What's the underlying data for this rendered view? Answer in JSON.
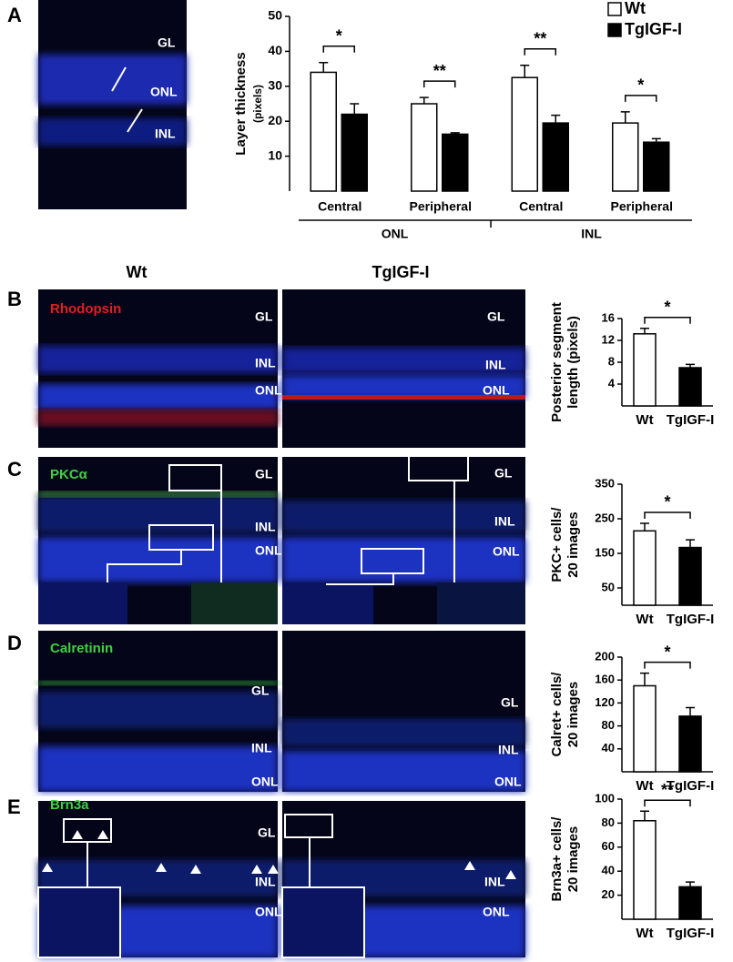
{
  "figure": {
    "panel_labels": [
      "A",
      "B",
      "C",
      "D",
      "E"
    ],
    "column_headers": [
      "Wt",
      "TgIGF-I"
    ],
    "stains": [
      "Rhodopsin",
      "PKCα",
      "Calretinin",
      "Brn3a"
    ],
    "image_labels": [
      [
        "GL",
        "ONL",
        "INL"
      ],
      [
        "GL",
        "INL",
        "ONL"
      ],
      [
        "GL",
        "INL",
        "ONL"
      ],
      [
        "GL",
        "INL",
        "ONL"
      ],
      [
        "GL",
        "INL",
        "ONL"
      ],
      [
        "GL",
        "INL",
        "ONL"
      ],
      [
        "GL",
        "INL",
        "ONL"
      ],
      [
        "GL",
        "INL",
        "ONL"
      ],
      [
        "INL",
        "ONL"
      ]
    ]
  },
  "chart_data": [
    {
      "type": "bar",
      "ylabel": [
        "Layer thickness",
        "(pixels)"
      ],
      "categories": [
        "Central",
        "Peripheral",
        "Central",
        "Peripheral"
      ],
      "groups": [
        "ONL",
        "INL"
      ],
      "series": [
        {
          "name": "Wt",
          "color": "#ffffff",
          "values": [
            34,
            25,
            32.5,
            19.5
          ],
          "errors": [
            2.8,
            1.8,
            3.5,
            3.2
          ]
        },
        {
          "name": "TgIGF-I",
          "color": "#000000",
          "values": [
            22,
            16.3,
            19.5,
            14
          ],
          "errors": [
            3,
            0.4,
            2.2,
            1
          ]
        }
      ],
      "significance": [
        "*",
        "**",
        "**",
        "*"
      ],
      "ylim": [
        0,
        50
      ],
      "yticks": [
        10,
        20,
        30,
        40,
        50
      ]
    },
    {
      "type": "bar",
      "ylabel": [
        "Posterior segment",
        "length (pixels)"
      ],
      "categories": [
        "Wt",
        "TgIGF-I"
      ],
      "values": [
        13.2,
        7
      ],
      "errors": [
        1,
        0.6
      ],
      "colors": [
        "#ffffff",
        "#000000"
      ],
      "significance": [
        "*"
      ],
      "ylim": [
        0,
        16
      ],
      "yticks": [
        4,
        8,
        12,
        16
      ]
    },
    {
      "type": "bar",
      "ylabel": [
        "PKC+ cells/",
        "20 images"
      ],
      "categories": [
        "Wt",
        "TgIGF-I"
      ],
      "values": [
        215,
        167
      ],
      "errors": [
        22,
        22
      ],
      "colors": [
        "#ffffff",
        "#000000"
      ],
      "significance": [
        "*"
      ],
      "ylim": [
        0,
        350
      ],
      "yticks": [
        50,
        150,
        250,
        350
      ]
    },
    {
      "type": "bar",
      "ylabel": [
        "Calret+ cells/",
        "20 images"
      ],
      "categories": [
        "Wt",
        "TgIGF-I"
      ],
      "values": [
        150,
        97
      ],
      "errors": [
        22,
        15
      ],
      "colors": [
        "#ffffff",
        "#000000"
      ],
      "significance": [
        "*"
      ],
      "ylim": [
        0,
        200
      ],
      "yticks": [
        40,
        80,
        120,
        160,
        200
      ]
    },
    {
      "type": "bar",
      "ylabel": [
        "Brn3a+ cells/",
        "20 images"
      ],
      "categories": [
        "Wt",
        "TgIGF-I"
      ],
      "values": [
        82,
        27
      ],
      "errors": [
        8,
        4
      ],
      "colors": [
        "#ffffff",
        "#000000"
      ],
      "significance": [
        "**"
      ],
      "ylim": [
        0,
        100
      ],
      "yticks": [
        20,
        40,
        60,
        80,
        100
      ]
    }
  ]
}
